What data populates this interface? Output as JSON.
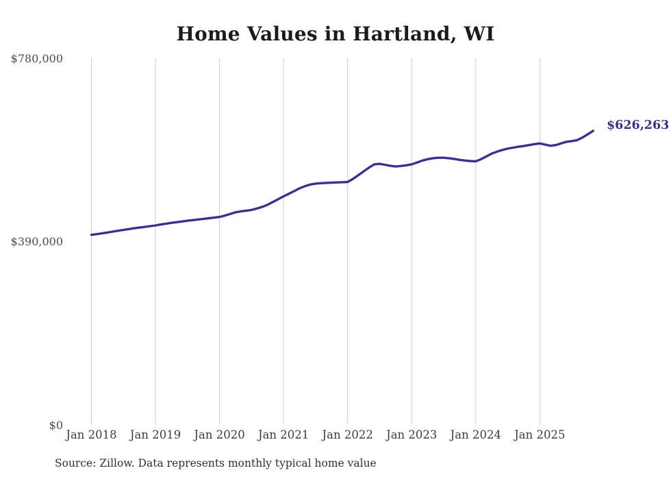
{
  "title": "Home Values in Hartland, WI",
  "source_note": "Source: Zillow. Data represents monthly typical home value",
  "colors": {
    "line": "#37318f",
    "grid": "#cccccc",
    "title_text": "#1b1b1b",
    "axis_text": "#3d3d3d",
    "end_label_text": "#34308c",
    "background": "#ffffff"
  },
  "chart_data": {
    "type": "line",
    "title": "Home Values in Hartland, WI",
    "xlabel": "",
    "ylabel": "",
    "ylim": [
      0,
      780000
    ],
    "grid": "vertical-only",
    "legend": "none",
    "frequency": "monthly",
    "x_start": "Jan 2018",
    "x_end": "Nov 2025",
    "x_tick_labels": [
      "Jan 2018",
      "Jan 2019",
      "Jan 2020",
      "Jan 2021",
      "Jan 2022",
      "Jan 2023",
      "Jan 2024",
      "Jan 2025"
    ],
    "y_ticks": [
      {
        "label": "$780,000",
        "value": 780000
      },
      {
        "label": "$390,000",
        "value": 390000
      },
      {
        "label": "$0",
        "value": 0
      }
    ],
    "end_label": "$626,263",
    "latest_value": 626263,
    "series": [
      {
        "name": "Typical home value",
        "values": [
          405000,
          406500,
          408200,
          410000,
          411800,
          413700,
          415500,
          417200,
          419000,
          420500,
          422000,
          423500,
          425000,
          427000,
          428800,
          430500,
          432000,
          433500,
          435000,
          436400,
          437700,
          439000,
          440300,
          441600,
          443000,
          446000,
          449500,
          453000,
          455000,
          456500,
          458000,
          461000,
          464500,
          469000,
          475000,
          481000,
          487000,
          492500,
          498000,
          504000,
          508500,
          512000,
          514000,
          515000,
          515500,
          516000,
          516500,
          517000,
          517500,
          524000,
          532000,
          540000,
          548000,
          555000,
          556000,
          554000,
          552000,
          550500,
          551500,
          553000,
          555000,
          559000,
          563000,
          566000,
          568000,
          569000,
          569000,
          568000,
          566500,
          564500,
          563000,
          562000,
          561500,
          566000,
          572000,
          578000,
          582000,
          585500,
          588500,
          590500,
          592500,
          594000,
          596000,
          598000,
          599500,
          597000,
          594500,
          596000,
          599500,
          603000,
          604500,
          606500,
          612000,
          619000,
          626263
        ]
      }
    ]
  }
}
